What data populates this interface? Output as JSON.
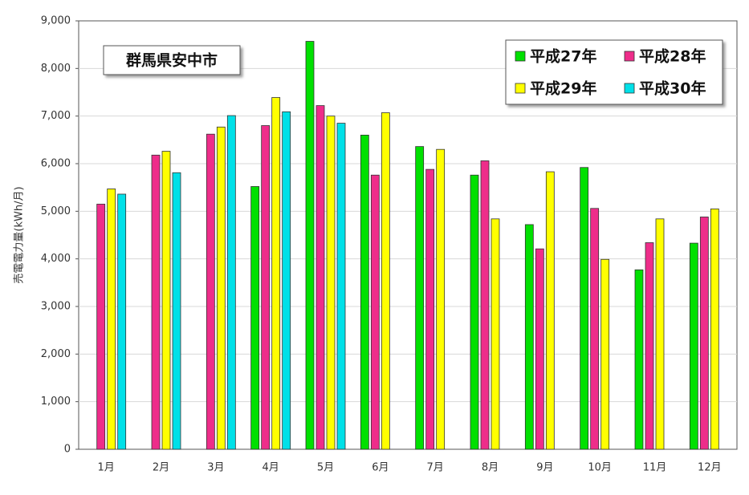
{
  "chart_data": {
    "type": "bar",
    "annotation": "群馬県安中市",
    "ylabel": "売電電力量(kWh/月)",
    "categories": [
      "1月",
      "2月",
      "3月",
      "4月",
      "5月",
      "6月",
      "7月",
      "8月",
      "9月",
      "10月",
      "11月",
      "12月"
    ],
    "series": [
      {
        "name": "平成27年",
        "color": "#00e000",
        "values": [
          null,
          null,
          null,
          5520,
          8570,
          6600,
          6360,
          5760,
          4720,
          5920,
          3770,
          4330
        ]
      },
      {
        "name": "平成28年",
        "color": "#ee2d8a",
        "values": [
          5150,
          6180,
          6620,
          6800,
          7220,
          5760,
          5880,
          6060,
          4210,
          5060,
          4340,
          4880
        ]
      },
      {
        "name": "平成29年",
        "color": "#ffff00",
        "values": [
          5470,
          6260,
          6770,
          7390,
          7000,
          7070,
          6300,
          4840,
          5830,
          3990,
          4840,
          5050
        ]
      },
      {
        "name": "平成30年",
        "color": "#00e0e8",
        "values": [
          5360,
          5810,
          7010,
          7090,
          6850,
          null,
          null,
          null,
          null,
          null,
          null,
          null
        ]
      }
    ],
    "ylim": [
      0,
      9000
    ],
    "yticks": [
      0,
      {
        "value": 1000,
        "label": "1,000"
      },
      {
        "value": 2000,
        "label": "2,000"
      },
      {
        "value": 3000,
        "label": "3,000"
      },
      {
        "value": 4000,
        "label": "4,000"
      },
      {
        "value": 5000,
        "label": "5,000"
      },
      {
        "value": 6000,
        "label": "6,000"
      },
      {
        "value": 7000,
        "label": "7,000"
      },
      {
        "value": 8000,
        "label": "8,000"
      },
      {
        "value": 9000,
        "label": "9,000"
      }
    ],
    "grid": true,
    "legend": "top-right"
  }
}
